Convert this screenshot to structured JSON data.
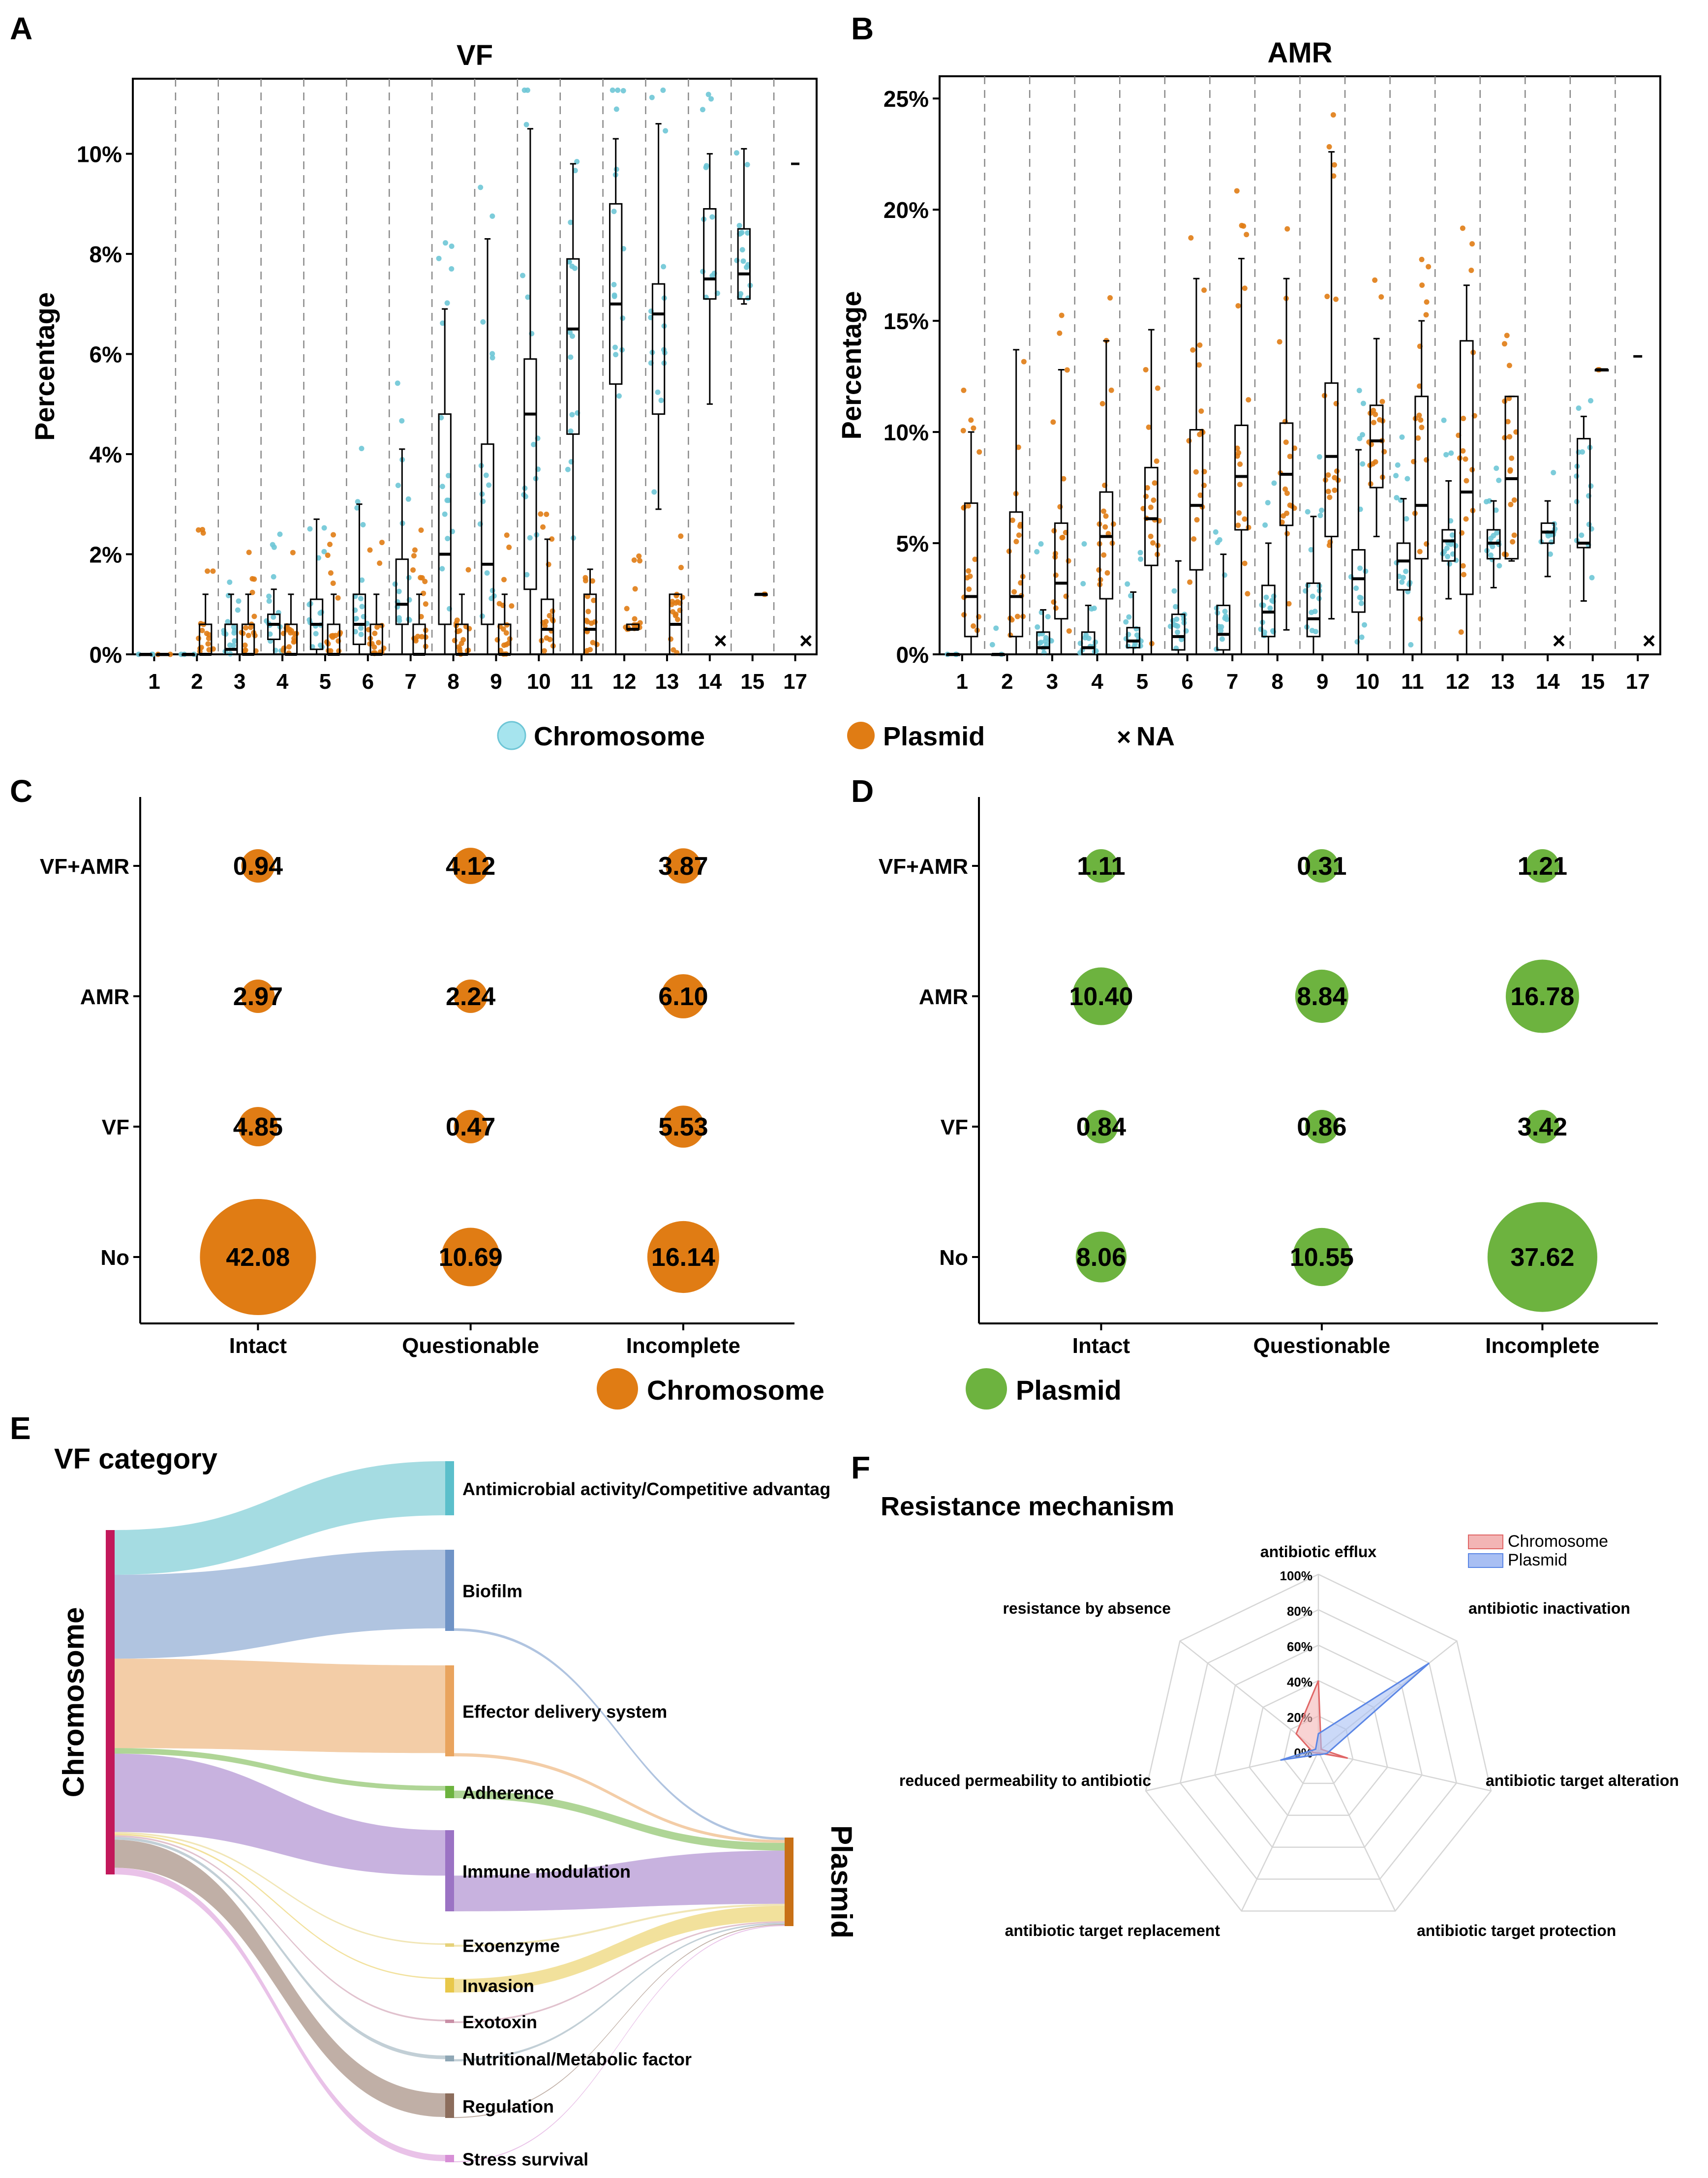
{
  "panel_labels": {
    "a": "A",
    "b": "B",
    "c": "C",
    "d": "D",
    "e": "E",
    "f": "F"
  },
  "colors": {
    "chromosome": "#6ec6d6",
    "plasmid": "#e07c14",
    "plasmid_green": "#6db33f",
    "radar_chromosome": "#e06666",
    "radar_plasmid": "#5b86e5"
  },
  "chart_data": [
    {
      "id": "A",
      "type": "box",
      "title": "VF",
      "ylabel": "Percentage",
      "y_ticks": [
        "0%",
        "2%",
        "4%",
        "6%",
        "8%",
        "10%"
      ],
      "ylim": [
        0,
        11.5
      ],
      "categories": [
        "1",
        "2",
        "3",
        "4",
        "5",
        "6",
        "7",
        "8",
        "9",
        "10",
        "11",
        "12",
        "13",
        "14",
        "15",
        "17"
      ],
      "series": [
        {
          "name": "Chromosome",
          "boxes": [
            [
              0,
              0,
              0,
              0,
              0
            ],
            [
              0,
              0,
              0,
              0,
              0
            ],
            [
              0,
              0,
              0.1,
              0.6,
              1.2
            ],
            [
              0,
              0.3,
              0.6,
              0.8,
              1.3
            ],
            [
              0,
              0.1,
              0.6,
              1.1,
              2.7
            ],
            [
              0,
              0.2,
              0.6,
              1.2,
              3.0
            ],
            [
              0,
              0.6,
              1.0,
              1.9,
              4.1
            ],
            [
              0,
              0.6,
              2.0,
              4.8,
              6.9
            ],
            [
              0,
              0.6,
              1.8,
              4.2,
              8.3
            ],
            [
              0,
              1.3,
              4.8,
              5.9,
              10.5
            ],
            [
              0,
              4.4,
              6.5,
              7.9,
              9.8
            ],
            [
              0,
              5.4,
              7.0,
              9.0,
              10.3
            ],
            [
              2.9,
              4.8,
              6.8,
              7.4,
              10.6
            ],
            [
              5.0,
              7.1,
              7.5,
              8.9,
              10.0
            ],
            [
              7.0,
              7.1,
              7.6,
              8.5,
              10.1
            ],
            [
              9.8,
              9.8,
              9.8,
              9.8,
              9.8
            ]
          ]
        },
        {
          "name": "Plasmid",
          "boxes": [
            [
              0,
              0,
              0,
              0,
              0
            ],
            [
              0,
              0,
              0,
              0.6,
              1.2
            ],
            [
              0,
              0,
              0,
              0.6,
              1.2
            ],
            [
              0,
              0,
              0,
              0.6,
              1.2
            ],
            [
              0,
              0,
              0,
              0.6,
              1.2
            ],
            [
              0,
              0,
              0,
              0.6,
              1.2
            ],
            [
              0,
              0,
              0,
              0.6,
              1.2
            ],
            [
              0,
              0,
              0,
              0.6,
              1.2
            ],
            [
              0,
              0,
              0,
              0.6,
              1.2
            ],
            [
              0,
              0,
              0.5,
              1.1,
              2.3
            ],
            [
              0,
              0,
              0.5,
              1.2,
              1.7
            ],
            [
              0.5,
              0.5,
              0.5,
              0.6,
              0.6
            ],
            [
              0,
              0,
              0.6,
              1.2,
              1.2
            ],
            null,
            [
              1.2,
              1.2,
              1.2,
              1.2,
              1.2
            ],
            null
          ]
        }
      ]
    },
    {
      "id": "B",
      "type": "box",
      "title": "AMR",
      "ylabel": "Percentage",
      "y_ticks": [
        "0%",
        "5%",
        "10%",
        "15%",
        "20%",
        "25%"
      ],
      "ylim": [
        0,
        26
      ],
      "categories": [
        "1",
        "2",
        "3",
        "4",
        "5",
        "6",
        "7",
        "8",
        "9",
        "10",
        "11",
        "12",
        "13",
        "14",
        "15",
        "17"
      ],
      "series": [
        {
          "name": "Chromosome",
          "boxes": [
            [
              0,
              0,
              0,
              0,
              0
            ],
            [
              0,
              0,
              0,
              0,
              0
            ],
            [
              0,
              0,
              0.3,
              1.0,
              2.0
            ],
            [
              0,
              0,
              0.3,
              1.0,
              2.2
            ],
            [
              0,
              0.3,
              0.6,
              1.2,
              2.8
            ],
            [
              0,
              0.2,
              0.8,
              1.8,
              4.2
            ],
            [
              0,
              0.2,
              0.9,
              2.2,
              4.5
            ],
            [
              0,
              0.8,
              1.9,
              3.1,
              5.0
            ],
            [
              0,
              0.8,
              1.6,
              3.2,
              6.2
            ],
            [
              0,
              1.9,
              3.4,
              4.7,
              9.2
            ],
            [
              0,
              2.9,
              4.2,
              5.0,
              7.0
            ],
            [
              2.5,
              4.2,
              5.1,
              5.6,
              7.8
            ],
            [
              3.0,
              4.3,
              5.0,
              5.6,
              6.9
            ],
            [
              3.5,
              5.0,
              5.5,
              5.9,
              6.9
            ],
            [
              2.4,
              4.8,
              5.0,
              9.7,
              10.7
            ],
            [
              13.4,
              13.4,
              13.4,
              13.4,
              13.4
            ]
          ]
        },
        {
          "name": "Plasmid",
          "boxes": [
            [
              0,
              0.8,
              2.6,
              6.8,
              10.0
            ],
            [
              0,
              0.8,
              2.6,
              6.4,
              13.7
            ],
            [
              0,
              1.6,
              3.2,
              5.9,
              12.8
            ],
            [
              0,
              2.5,
              5.3,
              7.3,
              14.1
            ],
            [
              0,
              4.0,
              6.1,
              8.4,
              14.6
            ],
            [
              0,
              3.8,
              6.7,
              10.1,
              16.9
            ],
            [
              0,
              5.6,
              8.0,
              10.3,
              17.8
            ],
            [
              1.1,
              5.8,
              8.1,
              10.4,
              16.9
            ],
            [
              1.6,
              5.3,
              8.9,
              12.2,
              22.6
            ],
            [
              5.3,
              7.5,
              9.6,
              11.2,
              14.2
            ],
            [
              0,
              4.3,
              6.7,
              11.6,
              15.0
            ],
            [
              0,
              2.7,
              7.3,
              14.1,
              16.6
            ],
            [
              4.2,
              4.3,
              7.9,
              11.6,
              11.6
            ],
            null,
            [
              12.8,
              12.8,
              12.8,
              12.8,
              12.8
            ],
            null
          ]
        }
      ]
    },
    {
      "id": "C",
      "type": "bubble",
      "series_name": "Chromosome",
      "x": [
        "Intact",
        "Questionable",
        "Incomplete"
      ],
      "y": [
        "No",
        "VF",
        "AMR",
        "VF+AMR"
      ],
      "values": [
        [
          42.08,
          10.69,
          16.14
        ],
        [
          4.85,
          0.47,
          5.53
        ],
        [
          2.97,
          2.24,
          6.1
        ],
        [
          0.94,
          4.12,
          3.87
        ]
      ],
      "labels": [
        [
          "42.08",
          "10.69",
          "16.14"
        ],
        [
          "4.85",
          "0.47",
          "5.53"
        ],
        [
          "2.97",
          "2.24",
          "6.10"
        ],
        [
          "0.94",
          "4.12",
          "3.87"
        ]
      ]
    },
    {
      "id": "D",
      "type": "bubble",
      "series_name": "Plasmid",
      "x": [
        "Intact",
        "Questionable",
        "Incomplete"
      ],
      "y": [
        "No",
        "VF",
        "AMR",
        "VF+AMR"
      ],
      "values": [
        [
          8.06,
          10.55,
          37.62
        ],
        [
          0.84,
          0.86,
          3.42
        ],
        [
          10.4,
          8.84,
          16.78
        ],
        [
          1.11,
          0.31,
          1.21
        ]
      ],
      "labels": [
        [
          "8.06",
          "10.55",
          "37.62"
        ],
        [
          "0.84",
          "0.86",
          "3.42"
        ],
        [
          "10.40",
          "8.84",
          "16.78"
        ],
        [
          "1.11",
          "0.31",
          "1.21"
        ]
      ]
    },
    {
      "id": "E",
      "type": "sankey",
      "title": "VF category",
      "source": "Chromosome",
      "target": "Plasmid",
      "categories": [
        "Antimicrobial activity/Competitive advantag",
        "Biofilm",
        "Effector delivery system",
        "Adherence",
        "Immune modulation",
        "Exoenzyme",
        "Invasion",
        "Exotoxin",
        "Nutritional/Metabolic factor",
        "Regulation",
        "Stress survival"
      ],
      "colors": [
        "#5bbfcb",
        "#6f93c6",
        "#e9a45e",
        "#6db33f",
        "#9b73c4",
        "#e6d27a",
        "#e8c84a",
        "#c98fa6",
        "#8fa7b5",
        "#8c6d5c",
        "#d78fd6"
      ],
      "chromosome_flow": [
        8,
        15,
        16,
        1,
        14,
        0.3,
        0.3,
        0.3,
        0.5,
        5,
        1.2
      ],
      "plasmid_flow": [
        0,
        0.5,
        0.6,
        1.6,
        11,
        0.4,
        3.2,
        0.3,
        0.3,
        0.2,
        0.2
      ]
    },
    {
      "id": "F",
      "type": "radar",
      "title": "Resistance mechanism",
      "axes": [
        "antibiotic efflux",
        "antibiotic inactivation",
        "antibiotic target alteration",
        "antibiotic target protection",
        "antibiotic target replacement",
        "reduced permeability to antibiotic",
        "resistance by absence"
      ],
      "r_ticks": [
        "0%",
        "20%",
        "40%",
        "60%",
        "80%",
        "100%"
      ],
      "series": [
        {
          "name": "Chromosome",
          "values": [
            40,
            2,
            17,
            1,
            1,
            3,
            16
          ]
        },
        {
          "name": "Plasmid",
          "values": [
            10,
            80,
            5,
            2,
            2,
            22,
            2
          ]
        }
      ]
    }
  ],
  "legend_ab": {
    "chromosome": "Chromosome",
    "plasmid": "Plasmid",
    "na": "NA",
    "na_symbol": "×"
  },
  "legend_cd": {
    "chromosome": "Chromosome",
    "plasmid": "Plasmid"
  },
  "radar_legend": {
    "chromosome": "Chromosome",
    "plasmid": "Plasmid"
  }
}
